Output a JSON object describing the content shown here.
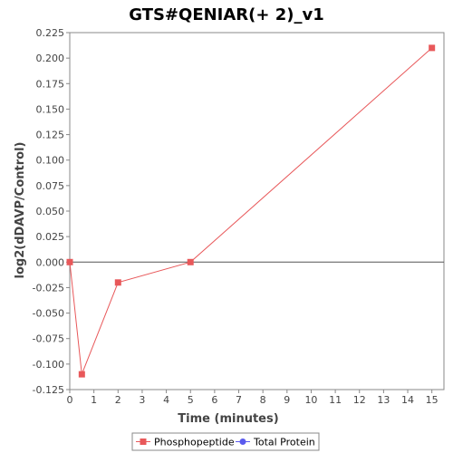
{
  "chart_data": {
    "type": "line",
    "title": "GTS#QENIAR(+ 2)_v1",
    "xlabel": "Time (minutes)",
    "ylabel": "log2(dDAVP/Control)",
    "xlim": [
      0,
      15.5
    ],
    "ylim": [
      -0.125,
      0.225
    ],
    "x_ticks": [
      0,
      1,
      2,
      3,
      4,
      5,
      6,
      7,
      8,
      9,
      10,
      11,
      12,
      13,
      14,
      15
    ],
    "y_ticks": [
      -0.125,
      -0.1,
      -0.075,
      -0.05,
      -0.025,
      0.0,
      0.025,
      0.05,
      0.075,
      0.1,
      0.125,
      0.15,
      0.175,
      0.2,
      0.225
    ],
    "y_tick_labels": [
      "-0.125",
      "-0.100",
      "-0.075",
      "-0.050",
      "-0.025",
      "0.000",
      "0.025",
      "0.050",
      "0.075",
      "0.100",
      "0.125",
      "0.150",
      "0.175",
      "0.200",
      "0.225"
    ],
    "zero_line": true,
    "grid": false,
    "legend_position": "bottom",
    "series": [
      {
        "name": "Phosphopeptide",
        "color": "#e8585a",
        "marker": "square",
        "x": [
          0,
          0.5,
          2,
          5,
          15
        ],
        "y": [
          0.0,
          -0.11,
          -0.02,
          0.0,
          0.21
        ]
      },
      {
        "name": "Total Protein",
        "color": "#5a5aee",
        "marker": "circle",
        "x": [],
        "y": []
      }
    ]
  }
}
